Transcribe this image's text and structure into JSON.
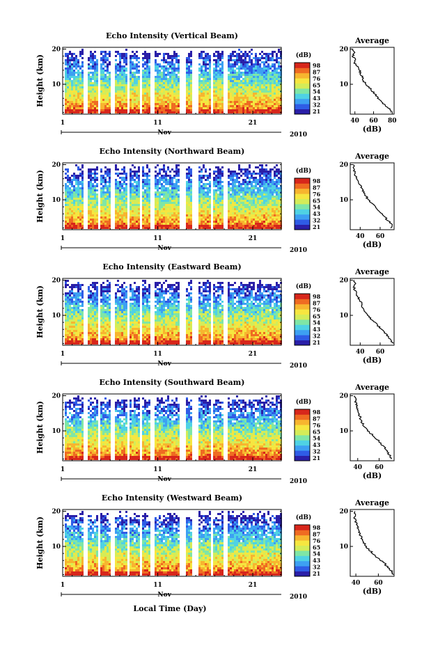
{
  "xlabel": "Local Time (Day)",
  "time_axis": {
    "day_ticks": [
      "1",
      "11",
      "21"
    ],
    "month_label": "Nov",
    "year_label": "2010"
  },
  "colorbar": {
    "unit_label": "(dB)",
    "ticks": [
      "98",
      "87",
      "76",
      "65",
      "54",
      "43",
      "32",
      "21"
    ],
    "colors": [
      "#2a1fa8",
      "#2f5ce6",
      "#3da0f2",
      "#4fd2e4",
      "#7fe6a6",
      "#d4ec58",
      "#f6e640",
      "#f7b52f",
      "#ef6b22",
      "#d7261b"
    ]
  },
  "average_panel": {
    "title": "Average",
    "xlabel": "(dB)"
  },
  "chart_data": [
    {
      "type": "heatmap",
      "title": "Echo Intensity (Vertical Beam)",
      "ylabel": "Height (km)",
      "yticks": [
        "20",
        "10"
      ],
      "ylim": [
        1.5,
        20.5
      ],
      "xlim": [
        1,
        24
      ],
      "profile": {
        "xticks": [
          "40",
          "60",
          "80"
        ],
        "xlim": [
          35,
          82
        ],
        "height": [
          2,
          3,
          4,
          5,
          6,
          7,
          8,
          9,
          10,
          11,
          12,
          13,
          14,
          15,
          16,
          17,
          18,
          19,
          20
        ],
        "db": [
          79,
          77,
          72,
          69,
          65,
          62,
          59,
          56,
          52,
          49,
          48,
          46,
          45,
          43,
          40,
          40,
          38,
          39,
          38
        ]
      }
    },
    {
      "type": "heatmap",
      "title": "Echo Intensity (Northward Beam)",
      "ylabel": "Height (km)",
      "yticks": [
        "20",
        "10"
      ],
      "ylim": [
        1.5,
        20.5
      ],
      "xlim": [
        1,
        24
      ],
      "profile": {
        "xticks": [
          "40",
          "60"
        ],
        "xlim": [
          30,
          74
        ],
        "height": [
          2,
          3,
          4,
          5,
          6,
          7,
          8,
          9,
          10,
          11,
          12,
          13,
          14,
          15,
          16,
          17,
          18,
          19,
          20
        ],
        "db": [
          71,
          72,
          68,
          65,
          62,
          58,
          55,
          51,
          48,
          46,
          44,
          42,
          40,
          38,
          36,
          35,
          34,
          34,
          33
        ]
      }
    },
    {
      "type": "heatmap",
      "title": "Echo Intensity (Eastward Beam)",
      "ylabel": "Height (km)",
      "yticks": [
        "20",
        "10"
      ],
      "ylim": [
        1.5,
        20.5
      ],
      "xlim": [
        1,
        24
      ],
      "profile": {
        "xticks": [
          "40",
          "60"
        ],
        "xlim": [
          30,
          74
        ],
        "height": [
          2,
          3,
          4,
          5,
          6,
          7,
          8,
          9,
          10,
          11,
          12,
          13,
          14,
          15,
          16,
          17,
          18,
          19,
          20
        ],
        "db": [
          73,
          71,
          68,
          65,
          62,
          58,
          55,
          51,
          48,
          45,
          43,
          42,
          40,
          38,
          36,
          35,
          34,
          35,
          34
        ]
      }
    },
    {
      "type": "heatmap",
      "title": "Echo Intensity (Southward Beam)",
      "ylabel": "Height (km)",
      "yticks": [
        "20",
        "10"
      ],
      "ylim": [
        1.5,
        20.5
      ],
      "xlim": [
        1,
        24
      ],
      "profile": {
        "xticks": [
          "40",
          "60"
        ],
        "xlim": [
          33,
          74
        ],
        "height": [
          2,
          3,
          4,
          5,
          6,
          7,
          8,
          9,
          10,
          11,
          12,
          13,
          14,
          15,
          16,
          17,
          18,
          19,
          20
        ],
        "db": [
          72,
          70,
          68,
          66,
          63,
          60,
          56,
          53,
          50,
          47,
          45,
          43,
          42,
          41,
          40,
          39,
          38,
          38,
          37
        ]
      }
    },
    {
      "type": "heatmap",
      "title": "Echo Intensity (Westward Beam)",
      "ylabel": "Height (km)",
      "yticks": [
        "20",
        "10"
      ],
      "ylim": [
        1.5,
        20.5
      ],
      "xlim": [
        1,
        24
      ],
      "profile": {
        "xticks": [
          "40",
          "60"
        ],
        "xlim": [
          35,
          74
        ],
        "height": [
          2,
          3,
          4,
          5,
          6,
          7,
          8,
          9,
          10,
          11,
          12,
          13,
          14,
          15,
          16,
          17,
          18,
          19,
          20
        ],
        "db": [
          73,
          72,
          69,
          66,
          62,
          58,
          55,
          52,
          49,
          47,
          46,
          44,
          43,
          42,
          41,
          40,
          39,
          40,
          39
        ]
      }
    }
  ]
}
